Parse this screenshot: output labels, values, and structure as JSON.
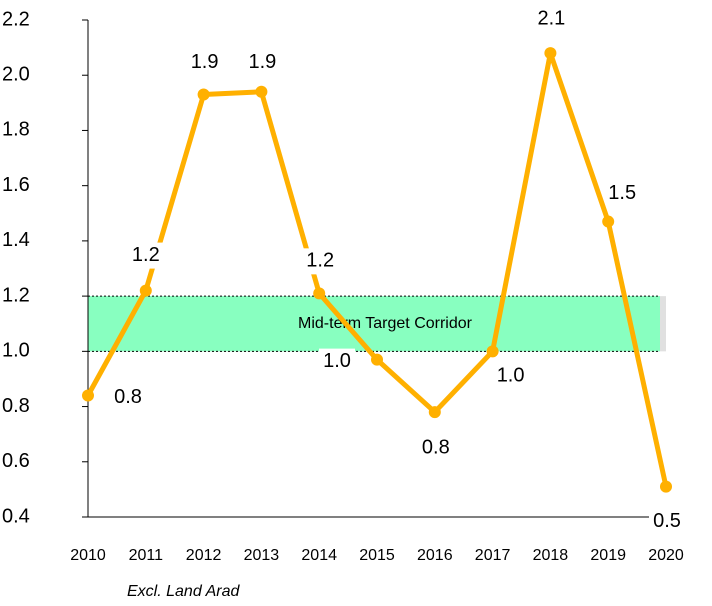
{
  "chart_data": {
    "type": "line",
    "categories": [
      "2010",
      "2011",
      "2012",
      "2013",
      "2014",
      "2015",
      "2016",
      "2017",
      "2018",
      "2019",
      "2020"
    ],
    "values": [
      0.84,
      1.22,
      1.93,
      1.94,
      1.21,
      0.97,
      0.78,
      1.0,
      2.08,
      1.47,
      0.51
    ],
    "value_labels": [
      "0.8",
      "1.2",
      "1.9",
      "1.9",
      "1.2",
      "1.0",
      "0.8",
      "1.0",
      "2.1",
      "1.5",
      "0.5"
    ],
    "color": "#ffb000",
    "ylim": [
      0.4,
      2.2
    ],
    "yticks": [
      0.4,
      0.6,
      0.8,
      {
        "value": 1,
        "label": "1.0"
      },
      1.2,
      1.4,
      1.6,
      1.8,
      {
        "value": 2,
        "label": "2.0"
      },
      2.2
    ],
    "corridor": {
      "label": "Mid-term  Target Corridor",
      "range": [
        1.0,
        1.2
      ],
      "color": "#88ffc0"
    },
    "footnote": "Excl. Land Arad"
  }
}
